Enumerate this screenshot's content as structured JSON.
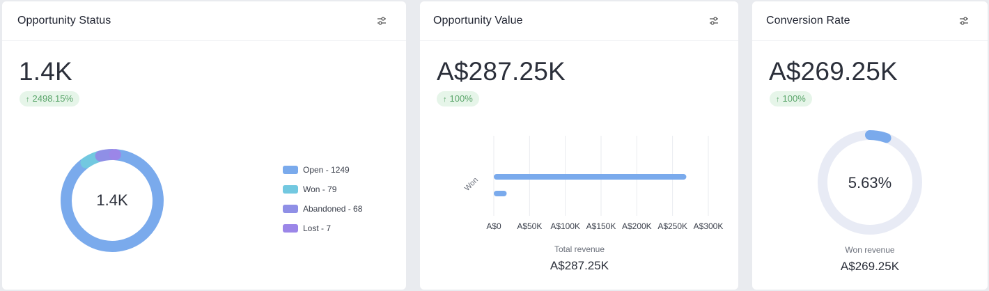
{
  "colors": {
    "open": "#7aaaec",
    "won": "#72c8e0",
    "abandoned": "#8f8fe6",
    "lost": "#9b86e8",
    "bar": "#7aaaec",
    "gauge_track": "#e8ebf5",
    "gauge_fill": "#7aaaec",
    "grid": "#e9ebef"
  },
  "icons": {
    "filter": "sliders-icon"
  },
  "status": {
    "title": "Opportunity Status",
    "big_value": "1.4K",
    "change": "2498.15%",
    "center_label": "1.4K",
    "legend": [
      {
        "label": "Open - 1249",
        "color": "#7aaaec"
      },
      {
        "label": "Won - 79",
        "color": "#72c8e0"
      },
      {
        "label": "Abandoned - 68",
        "color": "#8f8fe6"
      },
      {
        "label": "Lost - 7",
        "color": "#9b86e8"
      }
    ]
  },
  "value": {
    "title": "Opportunity Value",
    "big_value": "A$287.25K",
    "change": "100%",
    "caption": "Total revenue",
    "caption_value": "A$287.25K"
  },
  "rate": {
    "title": "Conversion Rate",
    "big_value": "A$269.25K",
    "change": "100%",
    "center_label": "5.63%",
    "caption": "Won revenue",
    "caption_value": "A$269.25K"
  },
  "chart_data": [
    {
      "type": "pie",
      "title": "",
      "categories": [
        "Open",
        "Won",
        "Abandoned",
        "Lost"
      ],
      "values": [
        1249,
        79,
        68,
        7
      ],
      "legend": "right"
    },
    {
      "type": "bar",
      "orientation": "horizontal",
      "title": "",
      "categories": [
        "Won",
        ""
      ],
      "values": [
        269250,
        18000
      ],
      "x_tick_labels": [
        "A$0",
        "A$50K",
        "A$100K",
        "A$150K",
        "A$200K",
        "A$250K",
        "A$300K"
      ],
      "xlim": [
        0,
        300000
      ],
      "grid": true
    },
    {
      "type": "pie",
      "title": "",
      "categories": [
        "Conversion"
      ],
      "values": [
        5.63
      ],
      "max": 100
    }
  ]
}
